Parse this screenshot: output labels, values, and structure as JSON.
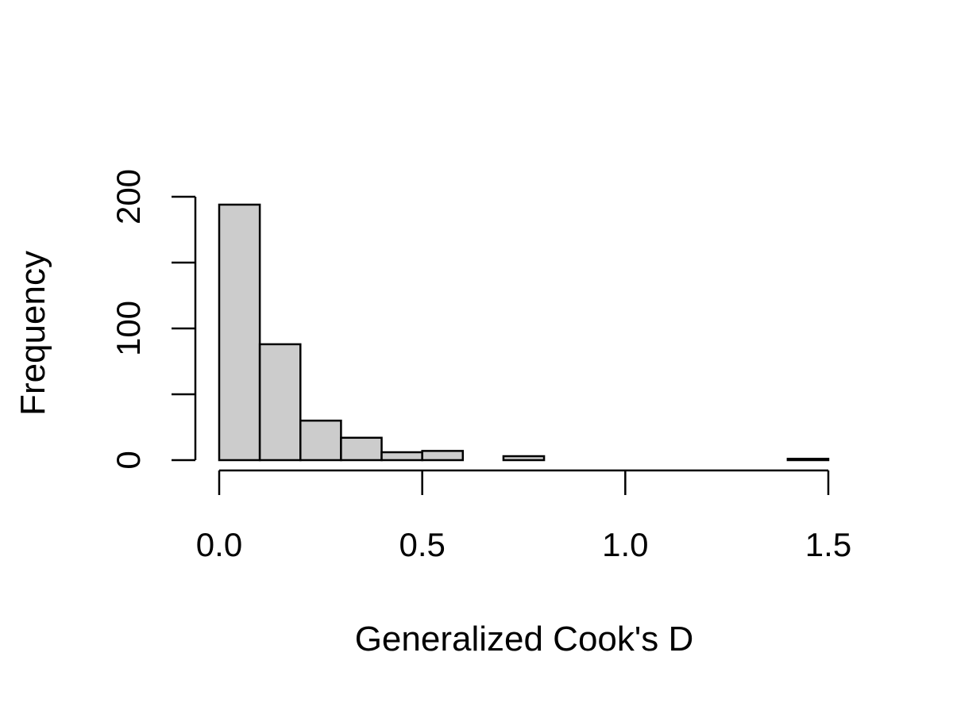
{
  "chart_data": {
    "type": "bar",
    "title": "",
    "xlabel": "Generalized Cook's D",
    "ylabel": "Frequency",
    "bin_edges": [
      0.0,
      0.1,
      0.2,
      0.3,
      0.4,
      0.5,
      0.6,
      0.7,
      0.8,
      0.9,
      1.0,
      1.1,
      1.2,
      1.3,
      1.4,
      1.5
    ],
    "values": [
      194,
      88,
      30,
      17,
      6,
      7,
      0,
      3,
      0,
      0,
      0,
      0,
      0,
      0,
      1
    ],
    "xlim": [
      0.0,
      1.5
    ],
    "ylim": [
      0,
      200
    ],
    "x_ticks": [
      0.0,
      0.5,
      1.0,
      1.5
    ],
    "x_tick_labels": [
      "0.0",
      "0.5",
      "1.0",
      "1.5"
    ],
    "y_ticks": [
      0,
      50,
      100,
      150,
      200
    ],
    "y_tick_labels": [
      "0",
      "",
      "100",
      "",
      "200"
    ],
    "grid": false,
    "colors": {
      "bar_fill": "#cccccc",
      "bar_stroke": "#000000",
      "axis": "#000000"
    }
  }
}
